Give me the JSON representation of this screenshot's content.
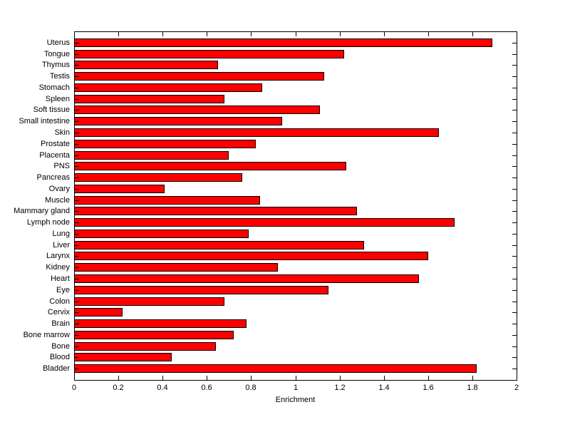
{
  "chart_data": {
    "type": "bar",
    "orientation": "horizontal",
    "title": "",
    "xlabel": "Enrichment",
    "ylabel": "",
    "categories": [
      "Uterus",
      "Tongue",
      "Thymus",
      "Testis",
      "Stomach",
      "Spleen",
      "Soft tissue",
      "Small intestine",
      "Skin",
      "Prostate",
      "Placenta",
      "PNS",
      "Pancreas",
      "Ovary",
      "Muscle",
      "Mammary gland",
      "Lymph node",
      "Lung",
      "Liver",
      "Larynx",
      "Kidney",
      "Heart",
      "Eye",
      "Colon",
      "Cervix",
      "Brain",
      "Bone marrow",
      "Bone",
      "Blood",
      "Bladder"
    ],
    "values": [
      1.89,
      1.22,
      0.65,
      1.13,
      0.85,
      0.68,
      1.11,
      0.94,
      1.65,
      0.82,
      0.7,
      1.23,
      0.76,
      0.41,
      0.84,
      1.28,
      1.72,
      0.79,
      1.31,
      1.6,
      0.92,
      1.56,
      1.15,
      0.68,
      0.22,
      0.78,
      0.72,
      0.64,
      0.44,
      1.82
    ],
    "xlim": [
      0,
      2
    ],
    "xticks": [
      0,
      0.2,
      0.4,
      0.6,
      0.8,
      1,
      1.2,
      1.4,
      1.6,
      1.8,
      2
    ],
    "xtick_labels": [
      "0",
      "0.2",
      "0.4",
      "0.6",
      "0.8",
      "1",
      "1.2",
      "1.4",
      "1.6",
      "1.8",
      "2"
    ],
    "grid": false,
    "legend": null,
    "colors": {
      "bar_fill": "#ff0000",
      "bar_edge": "#000000",
      "axis": "#000000",
      "background": "#ffffff",
      "text": "#000000"
    }
  }
}
